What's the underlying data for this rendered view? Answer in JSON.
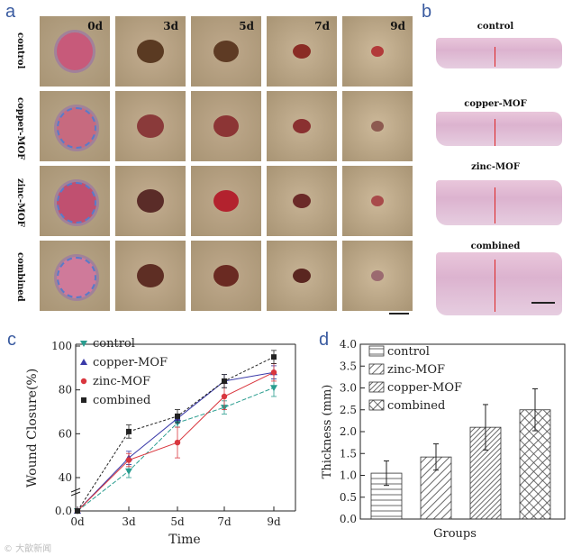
{
  "panels": {
    "a": "a",
    "b": "b",
    "c": "c",
    "d": "d"
  },
  "panel_a": {
    "row_labels": [
      "control",
      "copper-MOF",
      "zinc-MOF",
      "combined"
    ],
    "day_labels": [
      "0d",
      "3d",
      "5d",
      "7d",
      "9d"
    ]
  },
  "panel_b": {
    "labels": [
      "control",
      "copper-MOF",
      "zinc-MOF",
      "combined"
    ]
  },
  "chart_data": [
    {
      "panel": "c",
      "type": "line",
      "xlabel": "Time",
      "ylabel": "Wound Closure(%)",
      "categories": [
        "0d",
        "3d",
        "5d",
        "7d",
        "9d"
      ],
      "yticks": [
        0.0,
        40,
        60,
        80,
        100
      ],
      "axis_break": true,
      "series": [
        {
          "name": "control",
          "marker": "triangle-down",
          "color": "#2a9d8f",
          "values": [
            0,
            43,
            65,
            72,
            81
          ],
          "errors": [
            0,
            3,
            2,
            3,
            4
          ]
        },
        {
          "name": "copper-MOF",
          "marker": "triangle-up",
          "color": "#3a3aa8",
          "values": [
            0,
            49,
            67,
            84,
            88
          ],
          "errors": [
            0,
            3,
            2,
            3,
            3
          ]
        },
        {
          "name": "zinc-MOF",
          "marker": "circle",
          "color": "#d9363e",
          "values": [
            0,
            48,
            56,
            77,
            88
          ],
          "errors": [
            0,
            3,
            7,
            6,
            4
          ]
        },
        {
          "name": "combined",
          "marker": "square",
          "color": "#222222",
          "values": [
            0,
            61,
            68,
            84,
            95
          ],
          "errors": [
            0,
            3,
            3,
            3,
            3
          ]
        }
      ]
    },
    {
      "panel": "d",
      "type": "bar",
      "xlabel": "Groups",
      "ylabel": "Thickness (mm)",
      "ylim": [
        0,
        4.0
      ],
      "yticks": [
        "0.0",
        "0.5",
        "1.0",
        "1.5",
        "2.0",
        "2.5",
        "3.0",
        "3.5",
        "4.0"
      ],
      "legend": [
        "control",
        "zinc-MOF",
        "copper-MOF",
        "combined"
      ],
      "values": [
        1.05,
        1.42,
        2.1,
        2.5
      ],
      "errors": [
        0.28,
        0.3,
        0.52,
        0.48
      ]
    }
  ],
  "watermark": "© 大歆新闻"
}
